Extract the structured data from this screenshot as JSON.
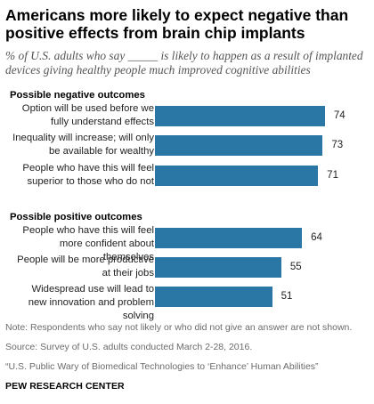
{
  "chart_data": {
    "type": "bar",
    "orientation": "horizontal",
    "title": "Americans more likely to expect negative than positive effects from brain chip implants",
    "subtitle": "% of U.S. adults who say _____ is likely to happen as a result of implanted devices giving healthy people much improved cognitive abilities",
    "groups": [
      {
        "label": "Possible negative outcomes",
        "categories": [
          "Option will be used before we fully understand effects",
          "Inequality will increase; will only be available for wealthy",
          "People who have this will feel superior to those who do not"
        ],
        "values": [
          74,
          73,
          71
        ]
      },
      {
        "label": "Possible positive outcomes",
        "categories": [
          "People who have this will feel more confident about themselves",
          "People will be more productive at their jobs",
          "Widespread use will lead to new innovation and problem solving"
        ],
        "values": [
          64,
          55,
          51
        ]
      }
    ],
    "xlim": [
      0,
      100
    ],
    "grid": false,
    "legend": "none",
    "bar_color": "#2a76a5"
  },
  "footer": {
    "note": "Note: Respondents who say not likely or who did not give an answer are not shown.",
    "source": "Source: Survey of U.S. adults conducted March 2-28, 2016.",
    "report": "“U.S. Public Wary of Biomedical Technologies to ‘Enhance’ Human Abilities”",
    "org": "PEW RESEARCH CENTER"
  }
}
